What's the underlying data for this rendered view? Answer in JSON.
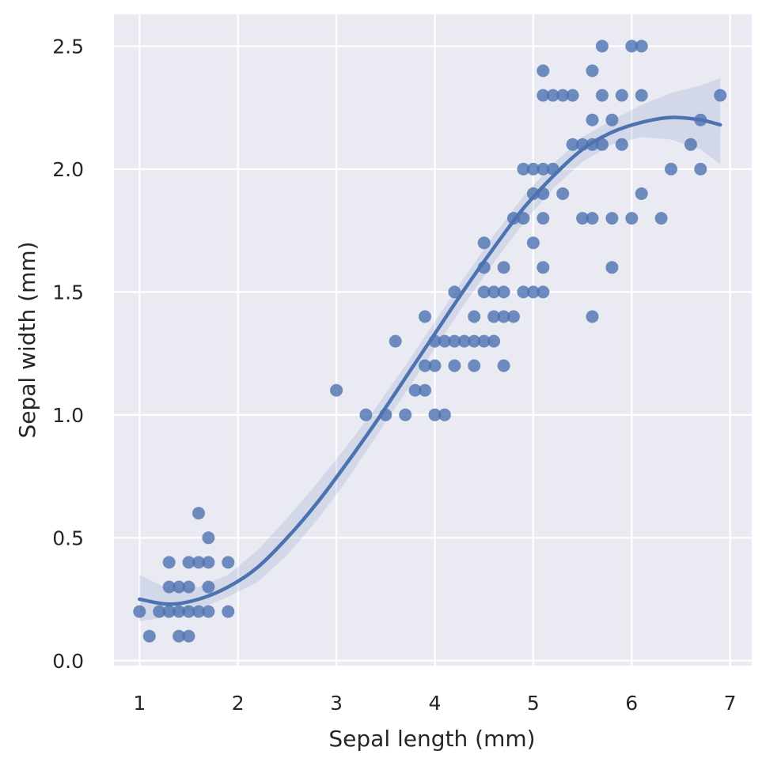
{
  "chart_data": {
    "type": "scatter",
    "title": "",
    "xlabel": "Sepal length (mm)",
    "ylabel": "Sepal width (mm)",
    "xlim": [
      0.74,
      7.22
    ],
    "ylim": [
      -0.02,
      2.63
    ],
    "x_ticks": [
      1,
      2,
      3,
      4,
      5,
      6,
      7
    ],
    "x_tick_labels": [
      "1",
      "2",
      "3",
      "4",
      "5",
      "6",
      "7"
    ],
    "y_ticks": [
      0.0,
      0.5,
      1.0,
      1.5,
      2.0,
      2.5
    ],
    "y_tick_labels": [
      "0.0",
      "0.5",
      "1.0",
      "1.5",
      "2.0",
      "2.5"
    ],
    "grid": true,
    "colors": {
      "point": "#4c72b0",
      "line": "#4c72b0",
      "background": "#eaeaf2",
      "grid": "#ffffff",
      "text": "#262626"
    },
    "points": [
      [
        1.0,
        0.2
      ],
      [
        1.1,
        0.1
      ],
      [
        1.2,
        0.2
      ],
      [
        1.3,
        0.4
      ],
      [
        1.3,
        0.3
      ],
      [
        1.3,
        0.2
      ],
      [
        1.4,
        0.3
      ],
      [
        1.4,
        0.2
      ],
      [
        1.4,
        0.1
      ],
      [
        1.5,
        0.4
      ],
      [
        1.5,
        0.3
      ],
      [
        1.5,
        0.2
      ],
      [
        1.5,
        0.1
      ],
      [
        1.6,
        0.6
      ],
      [
        1.6,
        0.4
      ],
      [
        1.6,
        0.2
      ],
      [
        1.7,
        0.5
      ],
      [
        1.7,
        0.4
      ],
      [
        1.7,
        0.3
      ],
      [
        1.7,
        0.2
      ],
      [
        1.9,
        0.4
      ],
      [
        1.9,
        0.2
      ],
      [
        3.0,
        1.1
      ],
      [
        3.3,
        1.0
      ],
      [
        3.5,
        1.0
      ],
      [
        3.6,
        1.3
      ],
      [
        3.7,
        1.0
      ],
      [
        3.8,
        1.1
      ],
      [
        3.9,
        1.4
      ],
      [
        3.9,
        1.2
      ],
      [
        3.9,
        1.1
      ],
      [
        4.0,
        1.3
      ],
      [
        4.0,
        1.2
      ],
      [
        4.0,
        1.0
      ],
      [
        4.1,
        1.3
      ],
      [
        4.1,
        1.0
      ],
      [
        4.2,
        1.5
      ],
      [
        4.2,
        1.3
      ],
      [
        4.2,
        1.2
      ],
      [
        4.3,
        1.3
      ],
      [
        4.4,
        1.4
      ],
      [
        4.4,
        1.3
      ],
      [
        4.4,
        1.2
      ],
      [
        4.5,
        1.7
      ],
      [
        4.5,
        1.6
      ],
      [
        4.5,
        1.5
      ],
      [
        4.5,
        1.3
      ],
      [
        4.6,
        1.5
      ],
      [
        4.6,
        1.4
      ],
      [
        4.6,
        1.3
      ],
      [
        4.7,
        1.6
      ],
      [
        4.7,
        1.5
      ],
      [
        4.7,
        1.4
      ],
      [
        4.7,
        1.2
      ],
      [
        4.8,
        1.8
      ],
      [
        4.8,
        1.4
      ],
      [
        4.9,
        2.0
      ],
      [
        4.9,
        1.8
      ],
      [
        4.9,
        1.5
      ],
      [
        5.0,
        2.0
      ],
      [
        5.0,
        1.9
      ],
      [
        5.0,
        1.7
      ],
      [
        5.0,
        1.5
      ],
      [
        5.1,
        2.4
      ],
      [
        5.1,
        2.3
      ],
      [
        5.1,
        2.0
      ],
      [
        5.1,
        1.9
      ],
      [
        5.1,
        1.8
      ],
      [
        5.1,
        1.6
      ],
      [
        5.1,
        1.5
      ],
      [
        5.2,
        2.3
      ],
      [
        5.2,
        2.0
      ],
      [
        5.3,
        2.3
      ],
      [
        5.3,
        1.9
      ],
      [
        5.4,
        2.3
      ],
      [
        5.4,
        2.1
      ],
      [
        5.5,
        2.1
      ],
      [
        5.5,
        1.8
      ],
      [
        5.6,
        2.4
      ],
      [
        5.6,
        2.2
      ],
      [
        5.6,
        2.1
      ],
      [
        5.6,
        1.8
      ],
      [
        5.6,
        1.4
      ],
      [
        5.7,
        2.5
      ],
      [
        5.7,
        2.3
      ],
      [
        5.7,
        2.1
      ],
      [
        5.8,
        2.2
      ],
      [
        5.8,
        1.8
      ],
      [
        5.8,
        1.6
      ],
      [
        5.9,
        2.3
      ],
      [
        5.9,
        2.1
      ],
      [
        6.0,
        2.5
      ],
      [
        6.0,
        1.8
      ],
      [
        6.1,
        2.5
      ],
      [
        6.1,
        2.3
      ],
      [
        6.1,
        1.9
      ],
      [
        6.3,
        1.8
      ],
      [
        6.4,
        2.0
      ],
      [
        6.6,
        2.1
      ],
      [
        6.7,
        2.2
      ],
      [
        6.7,
        2.0
      ],
      [
        6.9,
        2.3
      ]
    ],
    "fit_line": {
      "x": [
        1.0,
        1.3,
        1.6,
        1.9,
        2.2,
        2.5,
        2.8,
        3.1,
        3.4,
        3.7,
        4.0,
        4.3,
        4.6,
        4.9,
        5.2,
        5.5,
        5.8,
        6.1,
        6.4,
        6.7,
        6.9
      ],
      "y": [
        0.25,
        0.23,
        0.25,
        0.3,
        0.38,
        0.5,
        0.64,
        0.8,
        0.97,
        1.15,
        1.33,
        1.51,
        1.68,
        1.84,
        1.97,
        2.08,
        2.15,
        2.19,
        2.21,
        2.2,
        2.18
      ],
      "ci_low": [
        0.16,
        0.18,
        0.21,
        0.26,
        0.32,
        0.43,
        0.57,
        0.73,
        0.91,
        1.09,
        1.27,
        1.45,
        1.62,
        1.78,
        1.92,
        2.03,
        2.1,
        2.13,
        2.12,
        2.08,
        2.02
      ],
      "ci_high": [
        0.35,
        0.29,
        0.3,
        0.35,
        0.45,
        0.58,
        0.72,
        0.87,
        1.03,
        1.2,
        1.38,
        1.56,
        1.73,
        1.89,
        2.02,
        2.13,
        2.2,
        2.26,
        2.31,
        2.34,
        2.37
      ]
    }
  }
}
